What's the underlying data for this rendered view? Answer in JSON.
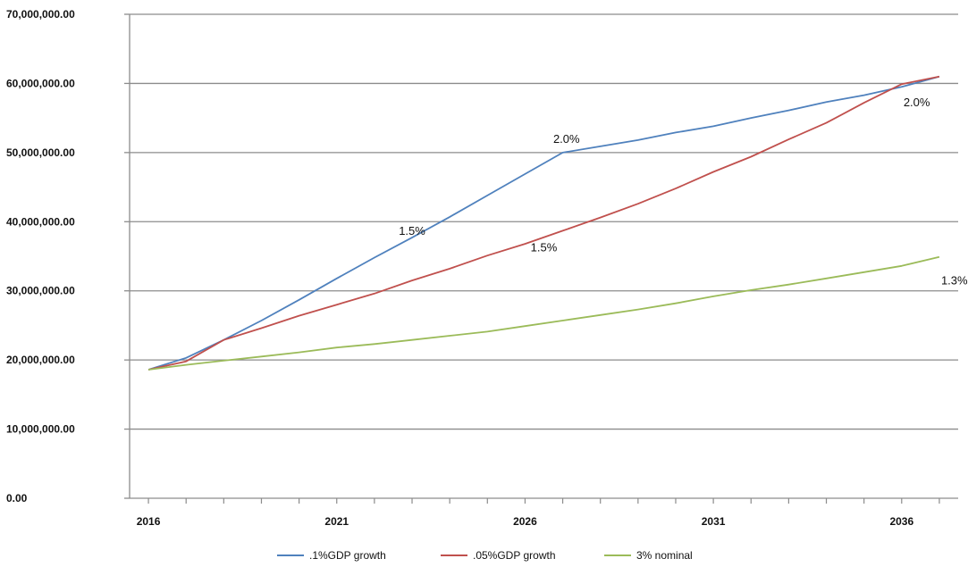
{
  "chart_data": {
    "type": "line",
    "title": "",
    "xlabel": "",
    "ylabel": "",
    "x": [
      2016,
      2017,
      2018,
      2019,
      2020,
      2021,
      2022,
      2023,
      2024,
      2025,
      2026,
      2027,
      2028,
      2029,
      2030,
      2031,
      2032,
      2033,
      2034,
      2035,
      2036,
      2037
    ],
    "xlim": [
      2015.5,
      2037.5
    ],
    "ylim": [
      0,
      70000000
    ],
    "y_ticks": [
      0,
      10000000,
      20000000,
      30000000,
      40000000,
      50000000,
      60000000,
      70000000
    ],
    "y_tick_labels": [
      "0.00",
      "10,000,000.00",
      "20,000,000.00",
      "30,000,000.00",
      "40,000,000.00",
      "50,000,000.00",
      "60,000,000.00",
      "70,000,000.00"
    ],
    "x_tick_labels": [
      {
        "x": 2016,
        "label": "2016"
      },
      {
        "x": 2021,
        "label": "2021"
      },
      {
        "x": 2026,
        "label": "2026"
      },
      {
        "x": 2031,
        "label": "2031"
      },
      {
        "x": 2036,
        "label": "2036"
      }
    ],
    "grid": "horizontal",
    "legend_position": "bottom",
    "series": [
      {
        "name": ".1%GDP growth",
        "color": "#4f81bd",
        "values": [
          18600000,
          20300000,
          22900000,
          25700000,
          28700000,
          31800000,
          34800000,
          37700000,
          40700000,
          43800000,
          46900000,
          50000000,
          50900000,
          51800000,
          52900000,
          53800000,
          55000000,
          56100000,
          57300000,
          58300000,
          59500000,
          61000000
        ]
      },
      {
        "name": ".05%GDP growth",
        "color": "#c0504d",
        "values": [
          18600000,
          19800000,
          22900000,
          24600000,
          26400000,
          28000000,
          29600000,
          31500000,
          33200000,
          35100000,
          36800000,
          38700000,
          40600000,
          42600000,
          44800000,
          47200000,
          49400000,
          51900000,
          54300000,
          57200000,
          59900000,
          61000000
        ]
      },
      {
        "name": "3% nominal",
        "color": "#9bbb59",
        "values": [
          18600000,
          19300000,
          19900000,
          20500000,
          21100000,
          21800000,
          22300000,
          22900000,
          23500000,
          24100000,
          24900000,
          25700000,
          26500000,
          27300000,
          28200000,
          29200000,
          30100000,
          30900000,
          31800000,
          32700000,
          33600000,
          34900000
        ]
      }
    ],
    "annotations": [
      {
        "text": "1.5%",
        "x": 2023.0,
        "y": 38100000
      },
      {
        "text": "2.0%",
        "x": 2027.1,
        "y": 51400000
      },
      {
        "text": "1.5%",
        "x": 2026.5,
        "y": 35700000
      },
      {
        "text": "2.0%",
        "x": 2036.4,
        "y": 56700000
      },
      {
        "text": "1.3%",
        "x": 2037.4,
        "y": 30900000
      }
    ]
  }
}
